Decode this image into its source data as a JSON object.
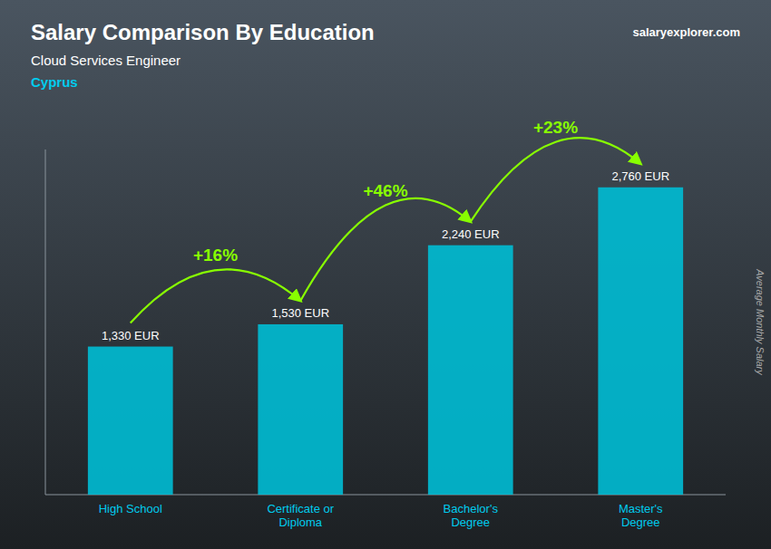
{
  "chart_data": {
    "type": "bar",
    "title": "Salary Comparison By Education",
    "subtitle": "Cloud Services Engineer",
    "country": "Cyprus",
    "source": "salaryexplorer.com",
    "categories": [
      "High School",
      "Certificate or\nDiploma",
      "Bachelor's\nDegree",
      "Master's\nDegree"
    ],
    "values": [
      1330,
      1530,
      2240,
      2760
    ],
    "value_labels": [
      "1,330 EUR",
      "1,530 EUR",
      "2,240 EUR",
      "2,760 EUR"
    ],
    "data_labels": true,
    "annotations": [
      "+16%",
      "+46%",
      "+23%"
    ],
    "y_label": "Average Monthly Salary",
    "color": "#00bcd4",
    "ylim": [
      0,
      3100
    ],
    "tick_labels": "x",
    "grid": false
  }
}
